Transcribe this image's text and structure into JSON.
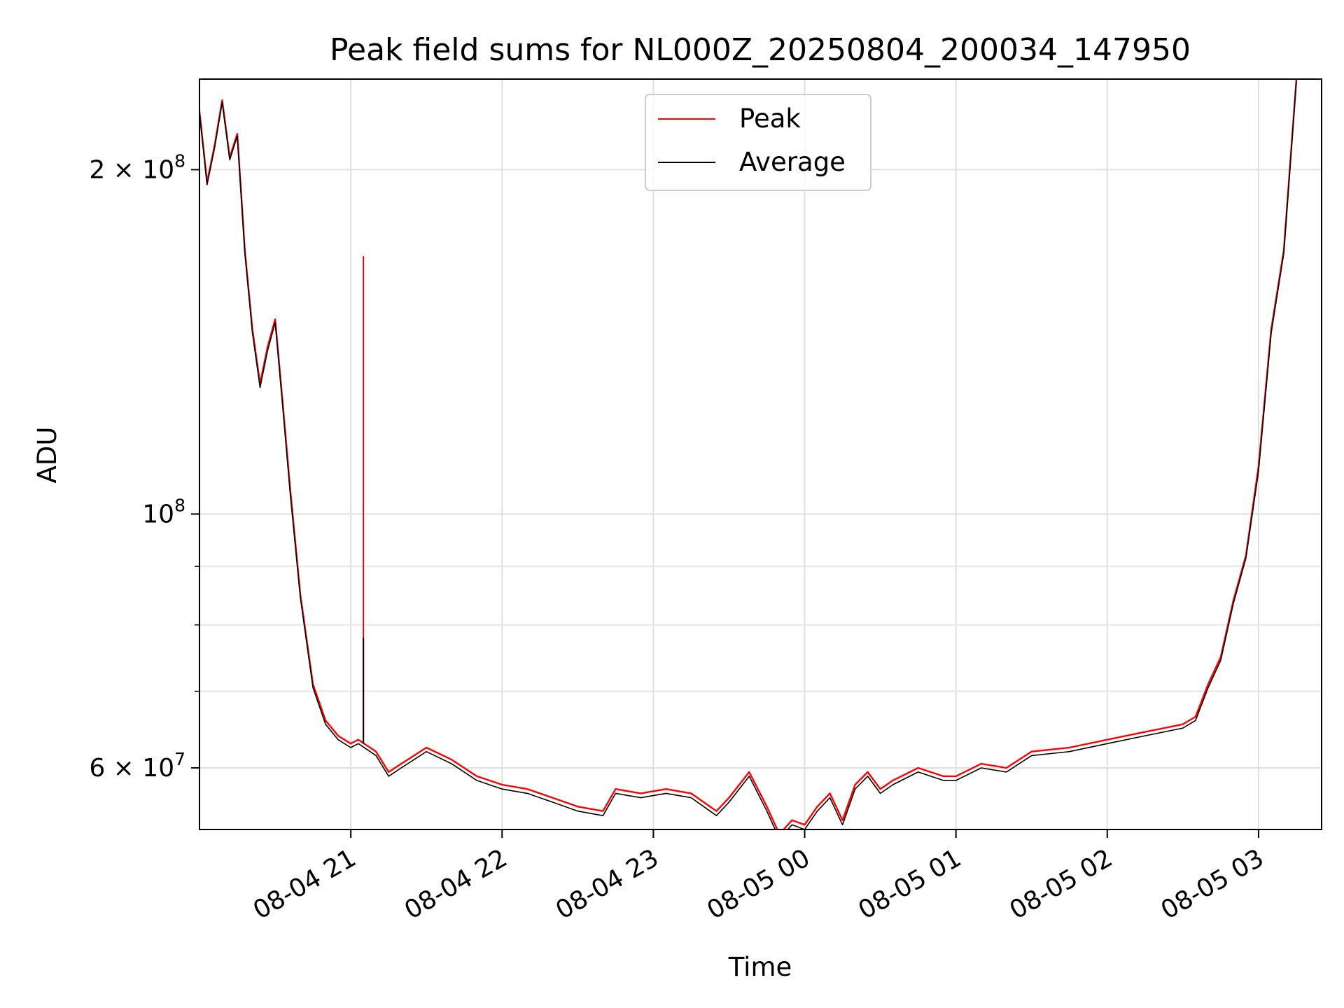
{
  "chart_data": {
    "type": "line",
    "title": "Peak field sums for NL000Z_20250804_200034_147950",
    "xlabel": "Time",
    "ylabel": "ADU",
    "yscale": "log",
    "xlim": [
      "2025-08-04 20:00",
      "2025-08-05 03:25"
    ],
    "ylim": [
      53000000,
      240000000
    ],
    "grid": true,
    "legend_position": "top-center",
    "x_tick_labels": [
      "08-04 21",
      "08-04 22",
      "08-04 23",
      "08-05 00",
      "08-05 01",
      "08-05 02",
      "08-05 03"
    ],
    "x_tick_values": [
      "2025-08-04 21:00",
      "2025-08-04 22:00",
      "2025-08-04 23:00",
      "2025-08-05 00:00",
      "2025-08-05 01:00",
      "2025-08-05 02:00",
      "2025-08-05 03:00"
    ],
    "y_tick_labels": [
      {
        "value": 200000000,
        "mantissa": "2",
        "exponent": "8"
      },
      {
        "value": 100000000,
        "mantissa": "",
        "exponent": "8"
      },
      {
        "value": 60000000,
        "mantissa": "6",
        "exponent": "7"
      }
    ],
    "y_minor_ticks": [
      70000000,
      80000000,
      90000000
    ],
    "x": [
      "2025-08-04 20:00",
      "2025-08-04 20:03",
      "2025-08-04 20:06",
      "2025-08-04 20:09",
      "2025-08-04 20:12",
      "2025-08-04 20:15",
      "2025-08-04 20:18",
      "2025-08-04 20:21",
      "2025-08-04 20:24",
      "2025-08-04 20:27",
      "2025-08-04 20:30",
      "2025-08-04 20:33",
      "2025-08-04 20:36",
      "2025-08-04 20:40",
      "2025-08-04 20:45",
      "2025-08-04 20:50",
      "2025-08-04 20:55",
      "2025-08-04 21:00",
      "2025-08-04 21:03",
      "2025-08-04 21:10",
      "2025-08-04 21:15",
      "2025-08-04 21:20",
      "2025-08-04 21:30",
      "2025-08-04 21:40",
      "2025-08-04 21:50",
      "2025-08-04 22:00",
      "2025-08-04 22:10",
      "2025-08-04 22:20",
      "2025-08-04 22:30",
      "2025-08-04 22:40",
      "2025-08-04 22:45",
      "2025-08-04 22:55",
      "2025-08-04 23:05",
      "2025-08-04 23:15",
      "2025-08-04 23:25",
      "2025-08-04 23:30",
      "2025-08-04 23:38",
      "2025-08-04 23:45",
      "2025-08-04 23:50",
      "2025-08-04 23:55",
      "2025-08-05 00:00",
      "2025-08-05 00:05",
      "2025-08-05 00:10",
      "2025-08-05 00:15",
      "2025-08-05 00:20",
      "2025-08-05 00:25",
      "2025-08-05 00:30",
      "2025-08-05 00:35",
      "2025-08-05 00:45",
      "2025-08-05 00:55",
      "2025-08-05 01:00",
      "2025-08-05 01:10",
      "2025-08-05 01:20",
      "2025-08-05 01:30",
      "2025-08-05 01:45",
      "2025-08-05 02:00",
      "2025-08-05 02:15",
      "2025-08-05 02:30",
      "2025-08-05 02:35",
      "2025-08-05 02:40",
      "2025-08-05 02:45",
      "2025-08-05 02:50",
      "2025-08-05 02:55",
      "2025-08-05 03:00",
      "2025-08-05 03:05",
      "2025-08-05 03:10",
      "2025-08-05 03:15"
    ],
    "series": [
      {
        "name": "Peak",
        "color": "#ff0000",
        "values": [
          225000000,
          195000000,
          210000000,
          230000000,
          205000000,
          215000000,
          170000000,
          145000000,
          130000000,
          140000000,
          148000000,
          125000000,
          105000000,
          85000000,
          71000000,
          66000000,
          64000000,
          63000000,
          63500000,
          62000000,
          59500000,
          60500000,
          62500000,
          61000000,
          59000000,
          58000000,
          57500000,
          56500000,
          55500000,
          55000000,
          57500000,
          57000000,
          57500000,
          57000000,
          55000000,
          56500000,
          59500000,
          55500000,
          52500000,
          54000000,
          53500000,
          55500000,
          57000000,
          54000000,
          58000000,
          59500000,
          57500000,
          58500000,
          60000000,
          59000000,
          59000000,
          60500000,
          60000000,
          62000000,
          62500000,
          63500000,
          64500000,
          65500000,
          66500000,
          71000000,
          75000000,
          84000000,
          92000000,
          110000000,
          145000000,
          170000000,
          240000000
        ]
      },
      {
        "name": "Average",
        "color": "#000000",
        "values": [
          224000000,
          194000000,
          209000000,
          229000000,
          204000000,
          214000000,
          169000000,
          144000000,
          129000000,
          139000000,
          147000000,
          124000000,
          104000000,
          84500000,
          70500000,
          65500000,
          63500000,
          62500000,
          63000000,
          61500000,
          59000000,
          60000000,
          62000000,
          60500000,
          58500000,
          57500000,
          57000000,
          56000000,
          55000000,
          54500000,
          57000000,
          56500000,
          57000000,
          56500000,
          54500000,
          56000000,
          59000000,
          55000000,
          52000000,
          53500000,
          53000000,
          55000000,
          56500000,
          53500000,
          57500000,
          59000000,
          57000000,
          58000000,
          59500000,
          58500000,
          58500000,
          60000000,
          59500000,
          61500000,
          62000000,
          63000000,
          64000000,
          65000000,
          66000000,
          70500000,
          74500000,
          83500000,
          91500000,
          109000000,
          144000000,
          169000000,
          239000000
        ]
      }
    ],
    "spikes": [
      {
        "series": "Peak",
        "x": "2025-08-04 21:05",
        "base": 63000000,
        "top": 168000000
      },
      {
        "series": "Average",
        "x": "2025-08-04 21:05",
        "base": 63000000,
        "top": 78000000
      }
    ]
  }
}
